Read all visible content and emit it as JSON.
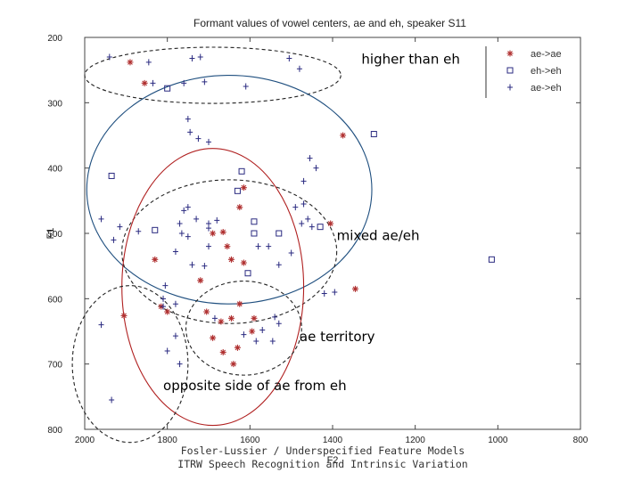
{
  "chart_data": {
    "type": "scatter",
    "title": "Formant values of vowel centers, ae and eh, speaker S11",
    "xlabel": "F2",
    "ylabel": "F1",
    "xlim": [
      2000,
      800
    ],
    "ylim": [
      200,
      800
    ],
    "x_ticks": [
      "2000",
      "1800",
      "1600",
      "1400",
      "1200",
      "1000",
      "800"
    ],
    "y_ticks": [
      "200",
      "300",
      "400",
      "500",
      "600",
      "700",
      "800"
    ],
    "legend": [
      {
        "label": "ae->ae",
        "marker": "star",
        "color": "#b03030"
      },
      {
        "label": "eh->eh",
        "marker": "square",
        "color": "#2a2a80"
      },
      {
        "label": "ae->eh",
        "marker": "plus",
        "color": "#2a2a80"
      }
    ],
    "series": [
      {
        "name": "ae->ae",
        "marker": "star",
        "color": "#b03030",
        "points": [
          [
            1890,
            238
          ],
          [
            1855,
            270
          ],
          [
            1375,
            350
          ],
          [
            1405,
            485
          ],
          [
            1830,
            540
          ],
          [
            1720,
            572
          ],
          [
            1815,
            612
          ],
          [
            1800,
            620
          ],
          [
            1705,
            620
          ],
          [
            1670,
            635
          ],
          [
            1625,
            608
          ],
          [
            1590,
            630
          ],
          [
            1595,
            650
          ],
          [
            1690,
            660
          ],
          [
            1645,
            630
          ],
          [
            1630,
            675
          ],
          [
            1665,
            682
          ],
          [
            1640,
            700
          ],
          [
            1645,
            540
          ],
          [
            1615,
            545
          ],
          [
            1615,
            430
          ],
          [
            1665,
            498
          ],
          [
            1690,
            500
          ],
          [
            1655,
            520
          ],
          [
            1625,
            460
          ],
          [
            1345,
            585
          ],
          [
            1905,
            626
          ]
        ]
      },
      {
        "name": "eh->eh",
        "marker": "square",
        "color": "#2a2a80",
        "points": [
          [
            1935,
            412
          ],
          [
            1800,
            278
          ],
          [
            1630,
            435
          ],
          [
            1620,
            405
          ],
          [
            1590,
            482
          ],
          [
            1605,
            561
          ],
          [
            1530,
            500
          ],
          [
            1430,
            490
          ],
          [
            1300,
            348
          ],
          [
            1590,
            500
          ],
          [
            1015,
            540
          ],
          [
            1830,
            495
          ]
        ]
      },
      {
        "name": "ae->eh",
        "marker": "plus",
        "color": "#2a2a80",
        "points": [
          [
            1940,
            230
          ],
          [
            1845,
            238
          ],
          [
            1835,
            270
          ],
          [
            1740,
            232
          ],
          [
            1720,
            230
          ],
          [
            1710,
            268
          ],
          [
            1760,
            270
          ],
          [
            1610,
            275
          ],
          [
            1505,
            232
          ],
          [
            1480,
            248
          ],
          [
            1750,
            325
          ],
          [
            1745,
            345
          ],
          [
            1725,
            355
          ],
          [
            1700,
            360
          ],
          [
            1470,
            420
          ],
          [
            1455,
            385
          ],
          [
            1440,
            400
          ],
          [
            1490,
            460
          ],
          [
            1470,
            455
          ],
          [
            1760,
            465
          ],
          [
            1730,
            478
          ],
          [
            1700,
            492
          ],
          [
            1765,
            500
          ],
          [
            1700,
            520
          ],
          [
            1750,
            505
          ],
          [
            1700,
            485
          ],
          [
            1680,
            480
          ],
          [
            1740,
            548
          ],
          [
            1805,
            580
          ],
          [
            1810,
            600
          ],
          [
            1810,
            612
          ],
          [
            1780,
            608
          ],
          [
            1710,
            550
          ],
          [
            1780,
            657
          ],
          [
            1685,
            630
          ],
          [
            1615,
            655
          ],
          [
            1585,
            665
          ],
          [
            1570,
            648
          ],
          [
            1545,
            665
          ],
          [
            1540,
            628
          ],
          [
            1530,
            638
          ],
          [
            1530,
            548
          ],
          [
            1555,
            520
          ],
          [
            1580,
            520
          ],
          [
            1460,
            478
          ],
          [
            1475,
            485
          ],
          [
            1500,
            530
          ],
          [
            1420,
            592
          ],
          [
            1395,
            590
          ],
          [
            1870,
            497
          ],
          [
            1960,
            478
          ],
          [
            1915,
            490
          ],
          [
            1930,
            510
          ],
          [
            1960,
            640
          ],
          [
            1935,
            755
          ],
          [
            1780,
            528
          ],
          [
            1750,
            460
          ],
          [
            1770,
            485
          ],
          [
            1450,
            490
          ],
          [
            1770,
            700
          ],
          [
            1800,
            680
          ]
        ]
      }
    ],
    "annotations": [
      {
        "text": "higher than eh",
        "x": 1330,
        "y": 240
      },
      {
        "text": "mixed ae/eh",
        "x": 1390,
        "y": 510
      },
      {
        "text": "ae territory",
        "x": 1480,
        "y": 665
      },
      {
        "text": "opposite side of ae from eh",
        "x": 1810,
        "y": 740
      }
    ],
    "regions": [
      {
        "name": "higher-than-eh-region",
        "cx": 1690,
        "cy": 258,
        "rx": 310,
        "ry": 43,
        "style": "dashed",
        "color": "#222222"
      },
      {
        "name": "mixed-region-outer",
        "cx": 1650,
        "cy": 433,
        "rx": 345,
        "ry": 175,
        "style": "solid",
        "color": "#1f4f7f"
      },
      {
        "name": "mixed-region-inner",
        "cx": 1650,
        "cy": 528,
        "rx": 260,
        "ry": 110,
        "style": "dashed",
        "color": "#222222"
      },
      {
        "name": "ae-territory-outer",
        "cx": 1690,
        "cy": 582,
        "rx": 220,
        "ry": 212,
        "style": "solid",
        "color": "#b02020"
      },
      {
        "name": "ae-territory-inner",
        "cx": 1615,
        "cy": 645,
        "rx": 140,
        "ry": 72,
        "style": "dashed",
        "color": "#222222"
      },
      {
        "name": "opposite-side-region",
        "cx": 1890,
        "cy": 700,
        "rx": 140,
        "ry": 120,
        "style": "dashed",
        "color": "#222222"
      }
    ]
  },
  "footer": {
    "line1": "Fosler-Lussier / Underspecified Feature Models",
    "line2": "ITRW Speech Recognition and Intrinsic Variation"
  }
}
